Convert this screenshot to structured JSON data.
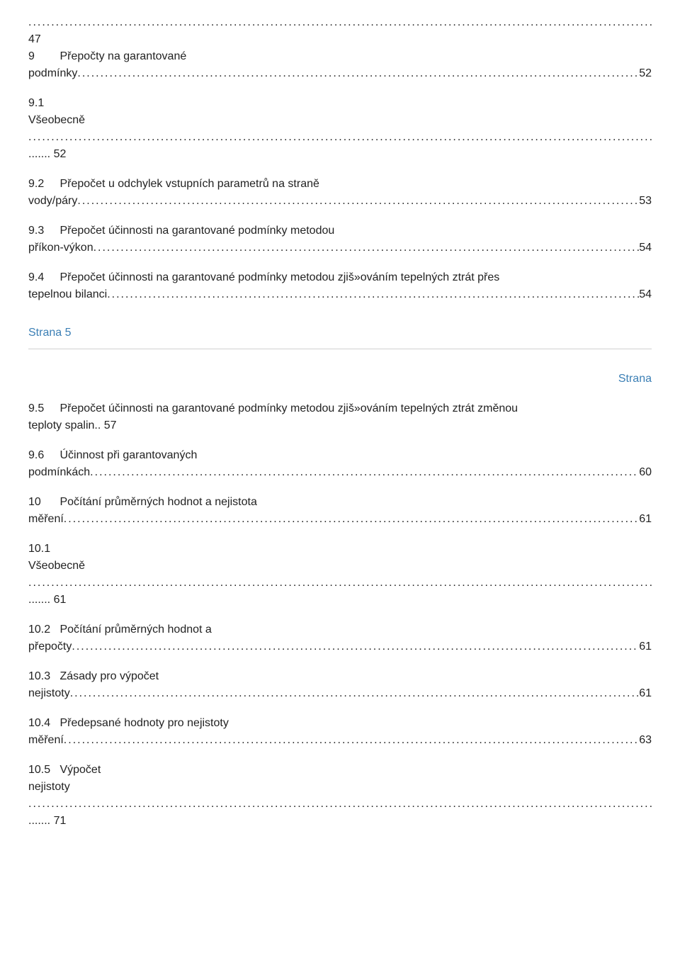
{
  "top_page_ref": "47",
  "entries_a": [
    {
      "num": "9",
      "title": "Přepočty na garantované",
      "cont": "podmínky",
      "page": "52"
    },
    {
      "num": "9.1",
      "title": "",
      "cont": "Všeobecně",
      "page": "52",
      "full_dots_after": true
    },
    {
      "num": "9.2",
      "title": "Přepočet u odchylek vstupních parametrů na straně",
      "cont": "vody/páry",
      "page": "53"
    },
    {
      "num": "9.3",
      "title": "Přepočet účinnosti na garantované podmínky metodou",
      "cont": "příkon-výkon",
      "page": "54"
    },
    {
      "num": "9.4",
      "title": "Přepočet účinnosti na garantované podmínky metodou zjiš»ováním tepelných ztrát přes",
      "cont": "tepelnou bilanci",
      "page": "54"
    }
  ],
  "page_break_label": "Strana 5",
  "right_label": "Strana",
  "entries_b": [
    {
      "num": "9.5",
      "title": "Přepočet účinnosti na garantované podmínky metodou zjiš»ováním tepelných ztrát změnou",
      "cont": "teploty spalin.",
      "page": "57",
      "no_dots": true
    },
    {
      "num": "9.6",
      "title": "Účinnost při garantovaných",
      "cont": "podmínkách",
      "page": "60"
    },
    {
      "num": "10",
      "title": "Počítání průměrných hodnot a nejistota",
      "cont": "měření",
      "page": "61"
    },
    {
      "num": "10.1",
      "title": "",
      "cont": "Všeobecně",
      "page": "61",
      "full_dots_after": true
    },
    {
      "num": "10.2",
      "title": "Počítání průměrných hodnot a",
      "cont": "přepočty",
      "page": "61"
    },
    {
      "num": "10.3",
      "title": "Zásady pro výpočet",
      "cont": "nejistoty",
      "page": "61"
    },
    {
      "num": "10.4",
      "title": "Předepsané hodnoty pro nejistoty",
      "cont": "měření",
      "page": "63"
    },
    {
      "num": "10.5",
      "title": "Výpočet",
      "cont": "nejistoty",
      "page": "71",
      "full_dots_after": true
    }
  ]
}
